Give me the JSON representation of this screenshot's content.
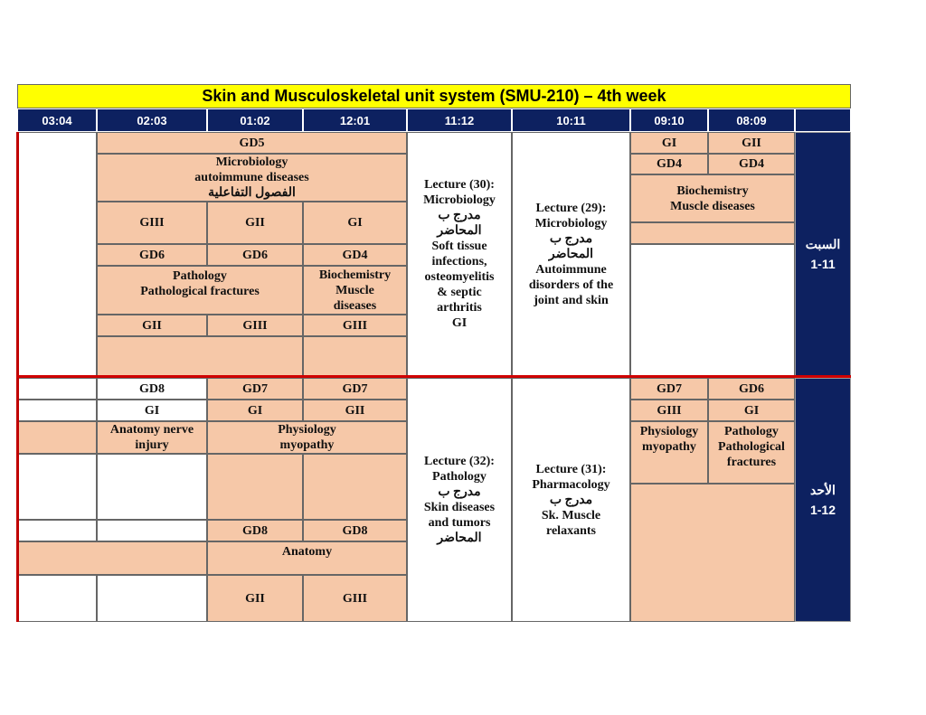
{
  "title": "Skin and Musculoskeletal unit system (SMU-210) – 4th week",
  "headers": [
    "03:04",
    "02:03",
    "01:02",
    "12:01",
    "11:12",
    "10:11",
    "09:10",
    "08:09",
    ""
  ],
  "day1": {
    "label": "السبت\n1-11",
    "gd5": "GD5",
    "micro": "Microbiology\nautoimmune diseases\nالفصول التفاعلية",
    "g1": "GIII",
    "g2": "GII",
    "g3": "GI",
    "gd1": "GD6",
    "gd2": "GD6",
    "gd3": "GD4",
    "pathology": "Pathology\nPathological fractures",
    "biochem": "Biochemistry\nMuscle\ndiseases",
    "h1": "GII",
    "h2": "GIII",
    "h3": "GIII",
    "lecture30": "Lecture (30):\nMicrobiology\nمدرج ب\nالمحاضر\nSoft tissue\ninfections,\nosteomyelitis\n& septic\narthritis\nGI",
    "lecture29": "Lecture (29):\nMicrobiology\nمدرج ب\nالمحاضر\nAutoimmune\ndisorders of the\njoint and skin",
    "r_g1": "GI",
    "r_g2": "GII",
    "r_gd1": "GD4",
    "r_gd2": "GD4",
    "r_biochem": "Biochemistry\nMuscle diseases"
  },
  "day2": {
    "label": "الأحد\n1-12",
    "gd8": "GD8",
    "gi": "GI",
    "anat_nerve": "Anatomy nerve\ninjury",
    "gd7a": "GD7",
    "gd7b": "GD7",
    "g1": "GI",
    "g2": "GII",
    "physio": "Physiology\nmyopathy",
    "gd8a": "GD8",
    "gd8b": "GD8",
    "anatomy": "Anatomy",
    "k1": "GII",
    "k2": "GIII",
    "lecture32": "Lecture (32):\nPathology\nمدرج ب\nSkin diseases\nand tumors\nالمحاضر",
    "lecture31": "Lecture (31):\nPharmacology\nمدرج ب\nSk. Muscle\nrelaxants",
    "r_gd1": "GD7",
    "r_gd2": "GD6",
    "r_g1": "GIII",
    "r_g2": "GI",
    "r_physio": "Physiology\nmyopathy",
    "r_path": "Pathology\nPathological\nfractures"
  },
  "colors": {
    "title_bg": "#ffff00",
    "header_bg": "#0d2160",
    "cell_fill": "#f6c8a8",
    "separator": "#c00000"
  }
}
